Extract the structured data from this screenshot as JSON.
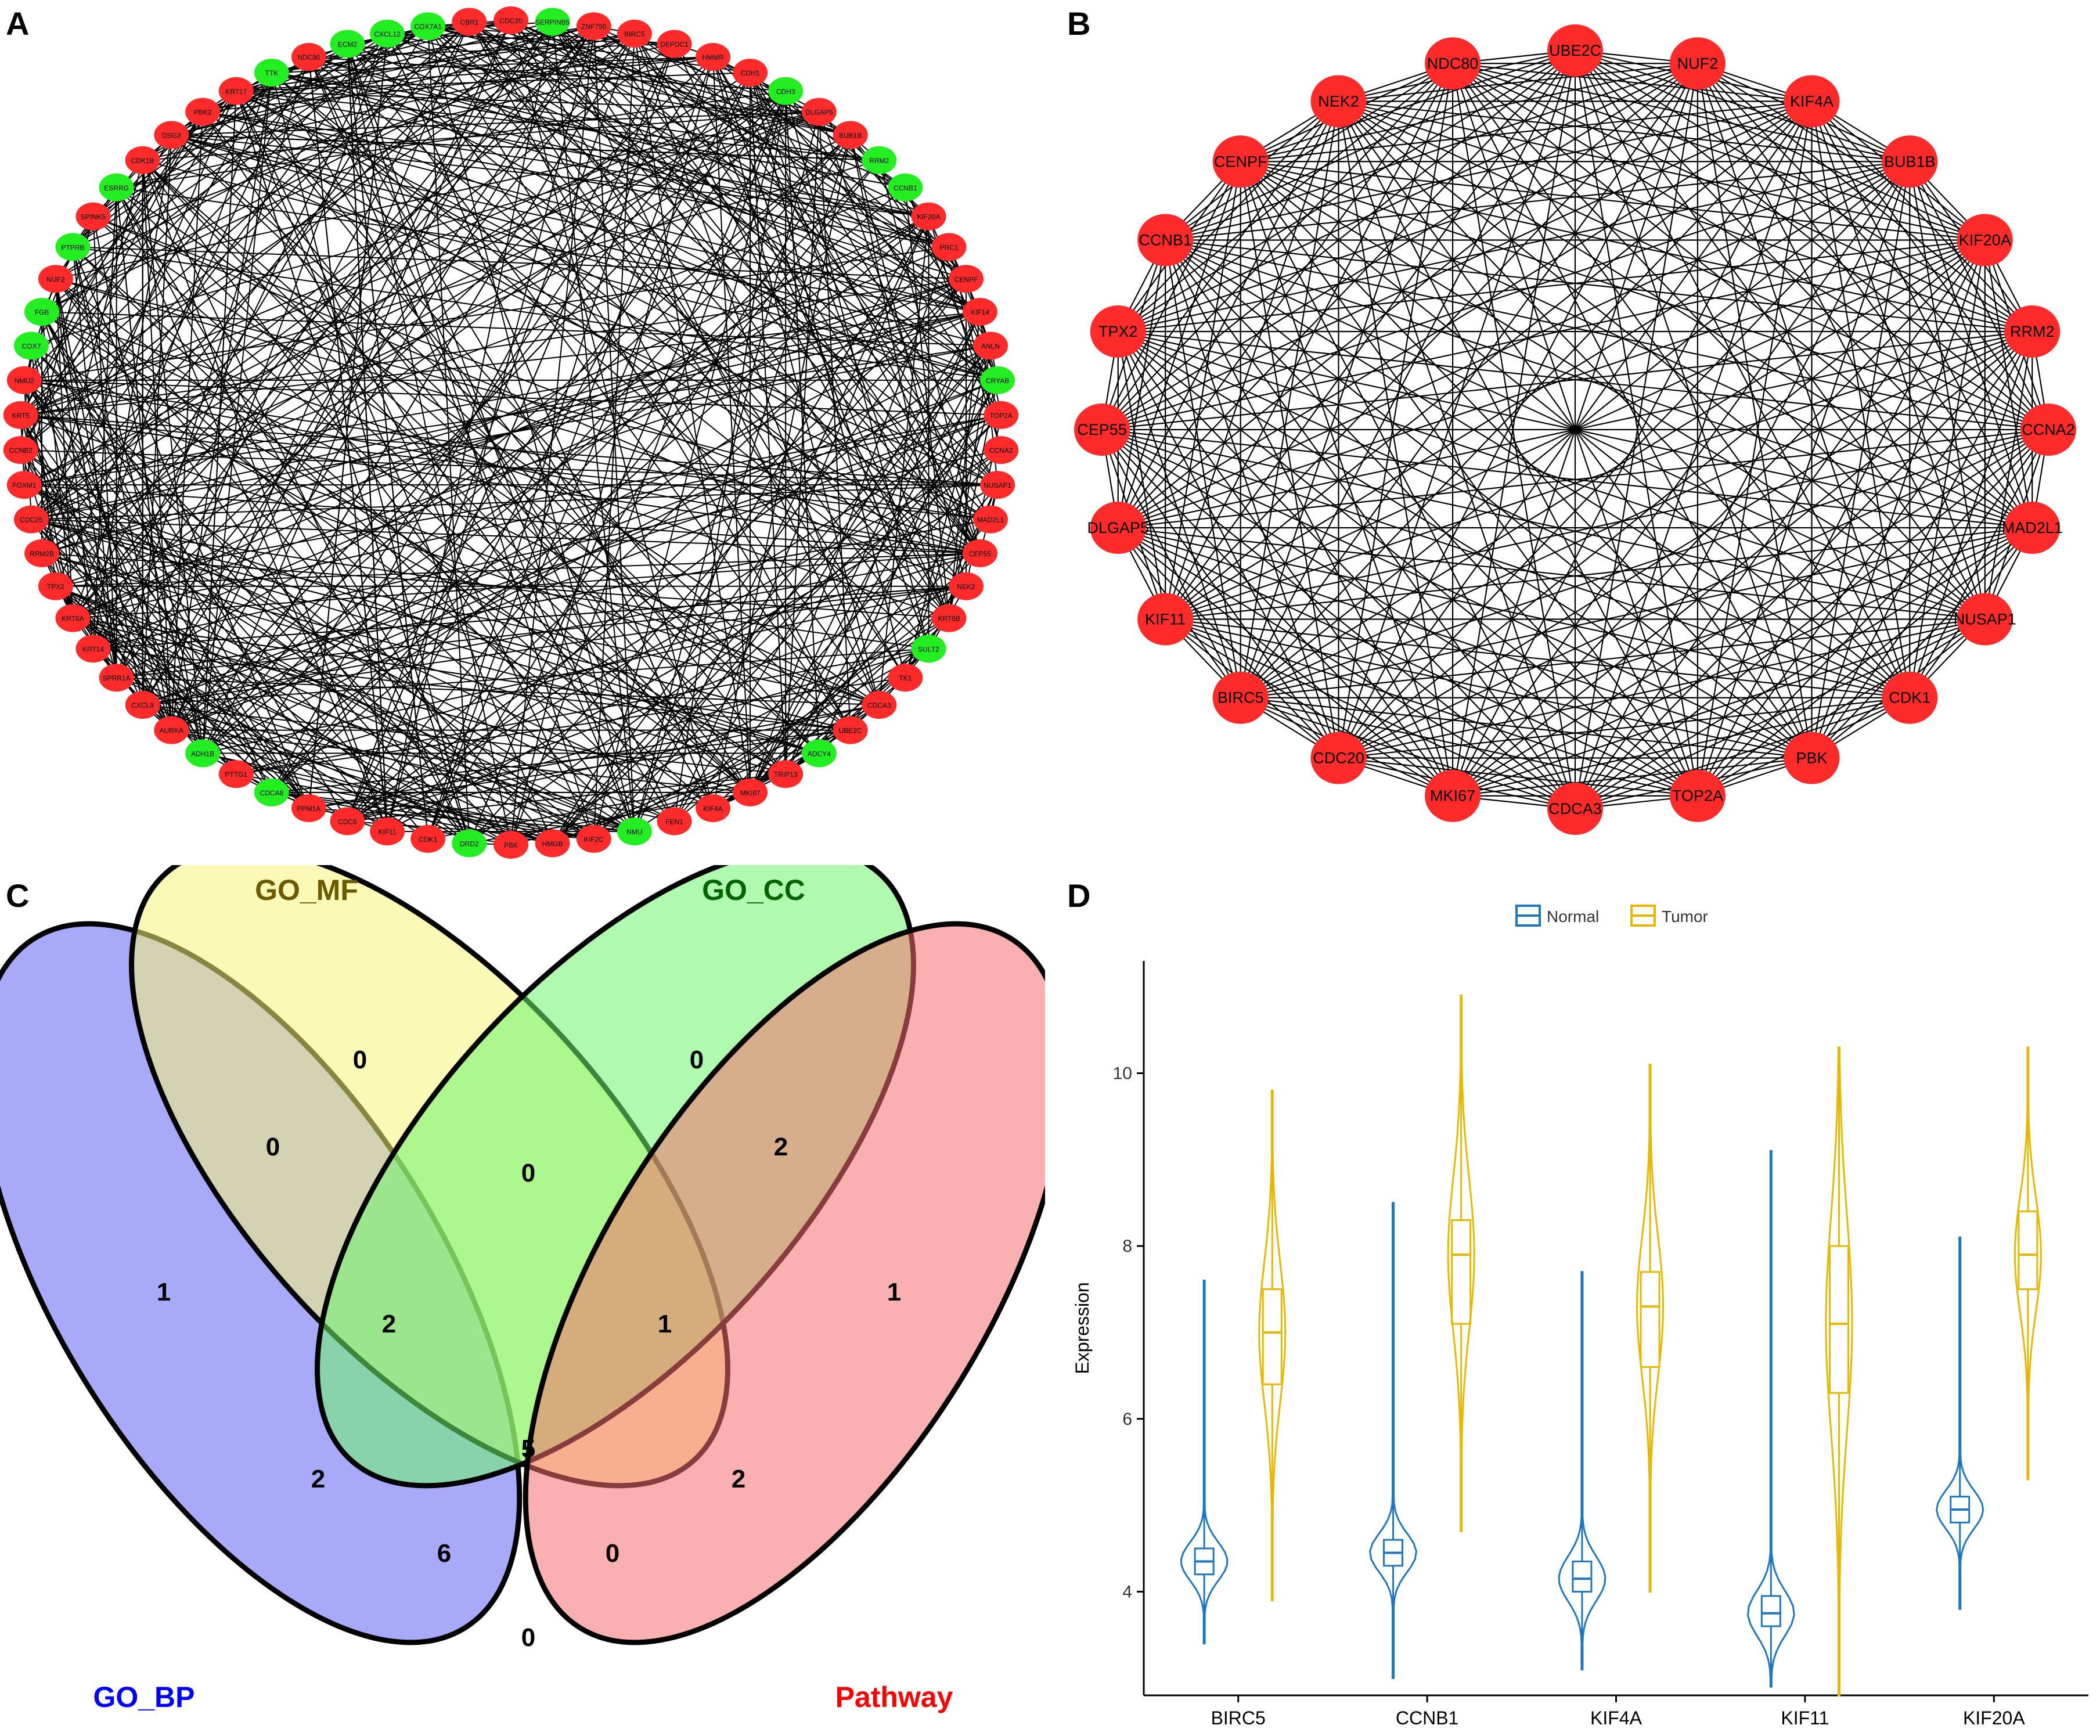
{
  "panels": {
    "a": {
      "letter": "A"
    },
    "b": {
      "letter": "B"
    },
    "c": {
      "letter": "C"
    },
    "d": {
      "letter": "D"
    }
  },
  "colors": {
    "red_node": "#ff2b2b",
    "green_node": "#22ee22",
    "edge": "#000000"
  },
  "network_a": {
    "nodes": [
      {
        "label": "CDC20",
        "color": "red"
      },
      {
        "label": "SERPINB5",
        "color": "green"
      },
      {
        "label": "ZNF750",
        "color": "red"
      },
      {
        "label": "BIRC5",
        "color": "red"
      },
      {
        "label": "DEPDC1",
        "color": "red"
      },
      {
        "label": "HMMR",
        "color": "red"
      },
      {
        "label": "CDH1",
        "color": "red"
      },
      {
        "label": "CDH3",
        "color": "green"
      },
      {
        "label": "DLGAP5",
        "color": "red"
      },
      {
        "label": "BUB1B",
        "color": "red"
      },
      {
        "label": "RRM2",
        "color": "green"
      },
      {
        "label": "CCNB1",
        "color": "green"
      },
      {
        "label": "KIF20A",
        "color": "red"
      },
      {
        "label": "PRC1",
        "color": "red"
      },
      {
        "label": "CENPF",
        "color": "red"
      },
      {
        "label": "KIF14",
        "color": "red"
      },
      {
        "label": "ANLN",
        "color": "red"
      },
      {
        "label": "CRYAB",
        "color": "green"
      },
      {
        "label": "TOP2A",
        "color": "red"
      },
      {
        "label": "CCNA2",
        "color": "red"
      },
      {
        "label": "NUSAP1",
        "color": "red"
      },
      {
        "label": "MAD2L1",
        "color": "red"
      },
      {
        "label": "CEP55",
        "color": "red"
      },
      {
        "label": "NEK2",
        "color": "red"
      },
      {
        "label": "KRT6B",
        "color": "red"
      },
      {
        "label": "SULT2",
        "color": "green"
      },
      {
        "label": "TK1",
        "color": "red"
      },
      {
        "label": "CDCA3",
        "color": "red"
      },
      {
        "label": "UBE2C",
        "color": "red"
      },
      {
        "label": "ADCY4",
        "color": "green"
      },
      {
        "label": "TRIP13",
        "color": "red"
      },
      {
        "label": "MKI67",
        "color": "red"
      },
      {
        "label": "KIF4A",
        "color": "red"
      },
      {
        "label": "FEN1",
        "color": "red"
      },
      {
        "label": "NMU",
        "color": "green"
      },
      {
        "label": "KIF2C",
        "color": "red"
      },
      {
        "label": "HMGB",
        "color": "red"
      },
      {
        "label": "PBK",
        "color": "red"
      },
      {
        "label": "DRD2",
        "color": "green"
      },
      {
        "label": "CDK1",
        "color": "red"
      },
      {
        "label": "KIF11",
        "color": "red"
      },
      {
        "label": "CDC6",
        "color": "red"
      },
      {
        "label": "PPM1A",
        "color": "red"
      },
      {
        "label": "CDCA8",
        "color": "green"
      },
      {
        "label": "PTTG1",
        "color": "red"
      },
      {
        "label": "ADH1B",
        "color": "green"
      },
      {
        "label": "AURKA",
        "color": "red"
      },
      {
        "label": "CXCL8",
        "color": "red"
      },
      {
        "label": "SPRR1A",
        "color": "red"
      },
      {
        "label": "KRT14",
        "color": "red"
      },
      {
        "label": "KRT6A",
        "color": "red"
      },
      {
        "label": "TPX2",
        "color": "red"
      },
      {
        "label": "RRM2B",
        "color": "red"
      },
      {
        "label": "CDC25",
        "color": "red"
      },
      {
        "label": "FOXM1",
        "color": "red"
      },
      {
        "label": "CCNB2",
        "color": "red"
      },
      {
        "label": "KRT5",
        "color": "red"
      },
      {
        "label": "NMU2",
        "color": "red"
      },
      {
        "label": "COX7",
        "color": "green"
      },
      {
        "label": "FGB",
        "color": "green"
      },
      {
        "label": "NUF2",
        "color": "red"
      },
      {
        "label": "PTPRB",
        "color": "green"
      },
      {
        "label": "SPINK5",
        "color": "red"
      },
      {
        "label": "ESRRG",
        "color": "green"
      },
      {
        "label": "CDK1B",
        "color": "red"
      },
      {
        "label": "DSG3",
        "color": "red"
      },
      {
        "label": "PBK2",
        "color": "red"
      },
      {
        "label": "KRT17",
        "color": "red"
      },
      {
        "label": "TTK",
        "color": "green"
      },
      {
        "label": "NDC80",
        "color": "red"
      },
      {
        "label": "ECM2",
        "color": "green"
      },
      {
        "label": "CXCL12",
        "color": "green"
      },
      {
        "label": "COX7A1",
        "color": "green"
      },
      {
        "label": "CBR1",
        "color": "red"
      }
    ]
  },
  "network_b": {
    "nodes": [
      "UBE2C",
      "NUF2",
      "KIF4A",
      "BUB1B",
      "KIF20A",
      "RRM2",
      "CCNA2",
      "MAD2L1",
      "NUSAP1",
      "CDK1",
      "PBK",
      "TOP2A",
      "CDCA3",
      "MKI67",
      "CDC20",
      "BIRC5",
      "KIF11",
      "DLGAP5",
      "CEP55",
      "TPX2",
      "CCNB1",
      "CENPF",
      "NEK2",
      "NDC80"
    ]
  },
  "venn": {
    "sets": [
      {
        "name": "GO_BP",
        "color": "#0000ff"
      },
      {
        "name": "GO_MF",
        "color": "#6b5a00"
      },
      {
        "name": "GO_CC",
        "color": "#006400"
      },
      {
        "name": "Pathway",
        "color": "#ff0000"
      }
    ],
    "counts": {
      "mf_only": "0",
      "cc_only": "0",
      "bp_only": "1",
      "pw_only": "1",
      "bp_mf": "0",
      "mf_cc": "0",
      "cc_pw": "2",
      "bp_mf_cc": "2",
      "mf_cc_pw": "1",
      "bp_cc": "2",
      "all": "5",
      "mf_pw": "2",
      "bp_cc_pw": "6",
      "bp_mf_pw": "0",
      "bp_pw": "0"
    }
  },
  "chart_data": {
    "type": "violin",
    "categories": [
      "BIRC5",
      "CCNB1",
      "KIF4A",
      "KIF11",
      "KIF20A"
    ],
    "ylabel": "Expression",
    "xlabel": "",
    "ylim": [
      2.8,
      11.3
    ],
    "yticks": [
      4,
      6,
      8,
      10
    ],
    "legend": {
      "position": "top",
      "entries": [
        "Normal",
        "Tumor"
      ]
    },
    "series": [
      {
        "name": "Normal",
        "color": "#1f77c0",
        "stats": [
          {
            "min": 3.4,
            "q1": 4.2,
            "median": 4.35,
            "q3": 4.5,
            "max": 7.6
          },
          {
            "min": 3.0,
            "q1": 4.3,
            "median": 4.45,
            "q3": 4.6,
            "max": 8.5
          },
          {
            "min": 3.1,
            "q1": 4.0,
            "median": 4.15,
            "q3": 4.35,
            "max": 7.7
          },
          {
            "min": 2.9,
            "q1": 3.6,
            "median": 3.75,
            "q3": 3.95,
            "max": 9.1
          },
          {
            "min": 3.8,
            "q1": 4.8,
            "median": 4.95,
            "q3": 5.1,
            "max": 8.1
          }
        ]
      },
      {
        "name": "Tumor",
        "color": "#e6b800",
        "stats": [
          {
            "min": 3.9,
            "q1": 6.4,
            "median": 7.0,
            "q3": 7.5,
            "max": 9.8
          },
          {
            "min": 4.7,
            "q1": 7.1,
            "median": 7.9,
            "q3": 8.3,
            "max": 10.9
          },
          {
            "min": 4.0,
            "q1": 6.6,
            "median": 7.3,
            "q3": 7.7,
            "max": 10.1
          },
          {
            "min": 2.8,
            "q1": 6.3,
            "median": 7.1,
            "q3": 8.0,
            "max": 10.3
          },
          {
            "min": 5.3,
            "q1": 7.5,
            "median": 7.9,
            "q3": 8.4,
            "max": 10.3
          }
        ]
      }
    ]
  }
}
